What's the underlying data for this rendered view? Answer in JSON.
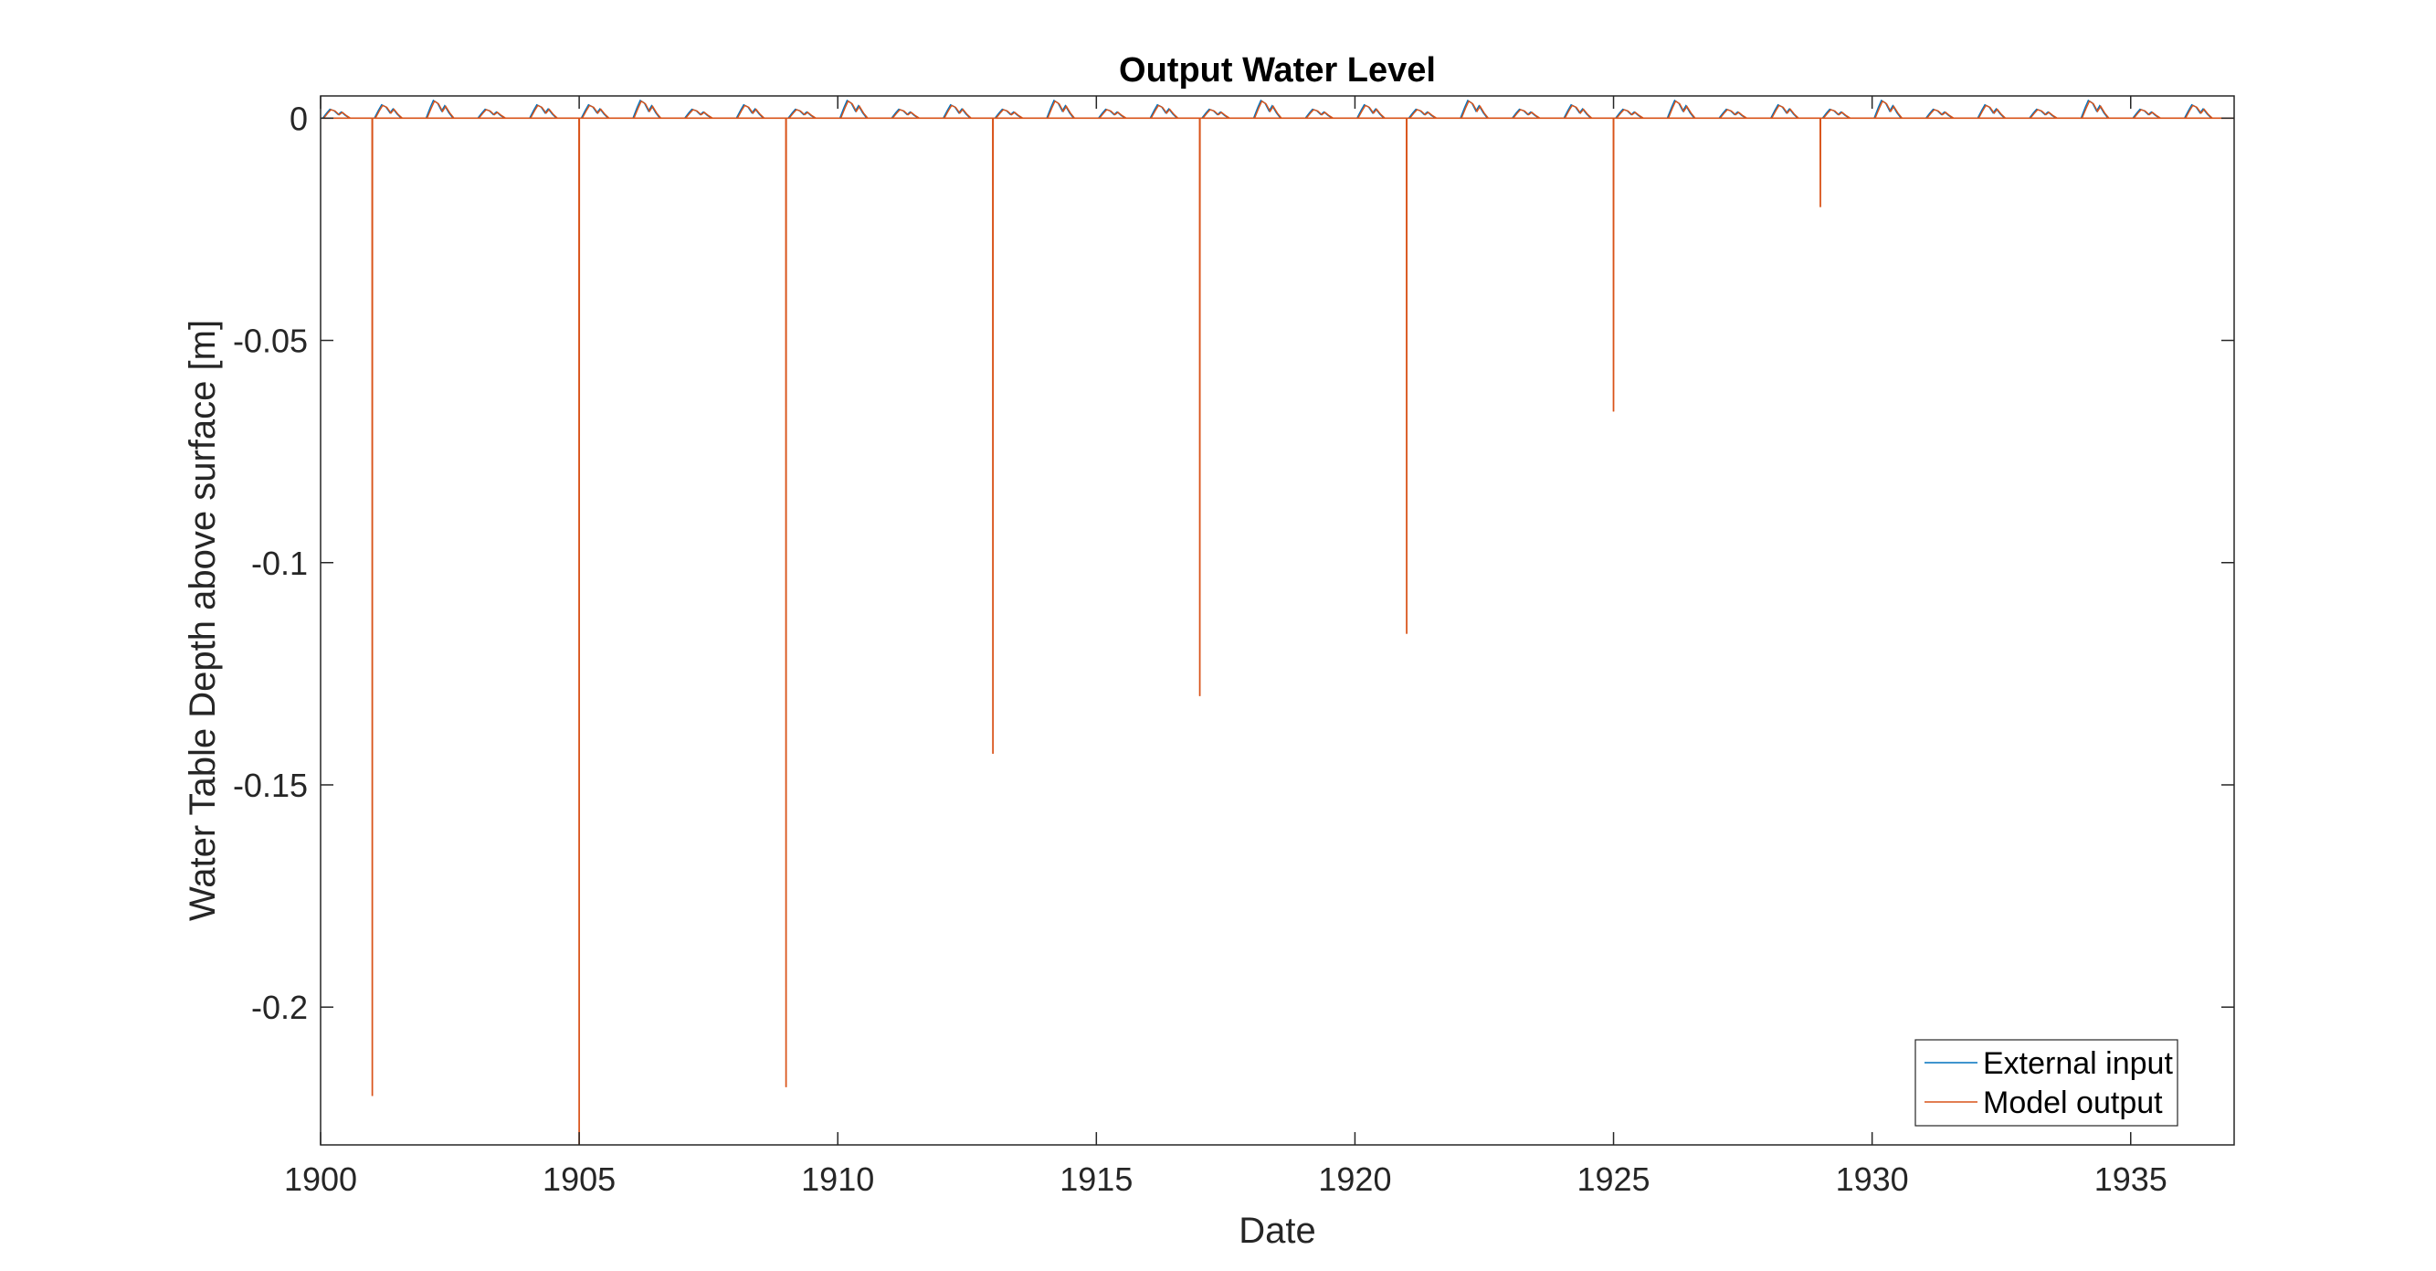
{
  "chart_data": {
    "type": "line",
    "title": "Output Water Level",
    "xlabel": "Date",
    "ylabel": "Water Table Depth above surface [m]",
    "xlim": [
      1900,
      1937
    ],
    "ylim": [
      -0.231,
      0.005
    ],
    "x_ticks": [
      1900,
      1905,
      1910,
      1915,
      1920,
      1925,
      1930,
      1935
    ],
    "x_tick_labels": [
      "1900",
      "1905",
      "1910",
      "1915",
      "1920",
      "1925",
      "1930",
      "1935"
    ],
    "y_ticks": [
      0,
      -0.05,
      -0.1,
      -0.15,
      -0.2
    ],
    "y_tick_labels": [
      "0",
      "-0.05",
      "-0.1",
      "-0.15",
      "-0.2"
    ],
    "grid": false,
    "legend_position": "bottom-right",
    "series": [
      {
        "name": "External input",
        "color": "#0072BD",
        "baseline": 0,
        "seasonal_peaks": [
          {
            "year": 1900,
            "peak": 0.002
          },
          {
            "year": 1901,
            "peak": 0.003
          },
          {
            "year": 1902,
            "peak": 0.004
          },
          {
            "year": 1903,
            "peak": 0.002
          },
          {
            "year": 1904,
            "peak": 0.003
          },
          {
            "year": 1905,
            "peak": 0.003
          },
          {
            "year": 1906,
            "peak": 0.004
          },
          {
            "year": 1907,
            "peak": 0.002
          },
          {
            "year": 1908,
            "peak": 0.003
          },
          {
            "year": 1909,
            "peak": 0.002
          },
          {
            "year": 1910,
            "peak": 0.004
          },
          {
            "year": 1911,
            "peak": 0.002
          },
          {
            "year": 1912,
            "peak": 0.003
          },
          {
            "year": 1913,
            "peak": 0.002
          },
          {
            "year": 1914,
            "peak": 0.004
          },
          {
            "year": 1915,
            "peak": 0.002
          },
          {
            "year": 1916,
            "peak": 0.003
          },
          {
            "year": 1917,
            "peak": 0.002
          },
          {
            "year": 1918,
            "peak": 0.004
          },
          {
            "year": 1919,
            "peak": 0.002
          },
          {
            "year": 1920,
            "peak": 0.003
          },
          {
            "year": 1921,
            "peak": 0.002
          },
          {
            "year": 1922,
            "peak": 0.004
          },
          {
            "year": 1923,
            "peak": 0.002
          },
          {
            "year": 1924,
            "peak": 0.003
          },
          {
            "year": 1925,
            "peak": 0.002
          },
          {
            "year": 1926,
            "peak": 0.004
          },
          {
            "year": 1927,
            "peak": 0.002
          },
          {
            "year": 1928,
            "peak": 0.003
          },
          {
            "year": 1929,
            "peak": 0.002
          },
          {
            "year": 1930,
            "peak": 0.004
          },
          {
            "year": 1931,
            "peak": 0.002
          },
          {
            "year": 1932,
            "peak": 0.003
          },
          {
            "year": 1933,
            "peak": 0.002
          },
          {
            "year": 1934,
            "peak": 0.004
          },
          {
            "year": 1935,
            "peak": 0.002
          },
          {
            "year": 1936,
            "peak": 0.003
          }
        ]
      },
      {
        "name": "Model output",
        "color": "#D95319",
        "baseline": 0,
        "negative_spikes": [
          {
            "x": 1901.0,
            "y": -0.22
          },
          {
            "x": 1905.0,
            "y": -0.231
          },
          {
            "x": 1909.0,
            "y": -0.218
          },
          {
            "x": 1913.0,
            "y": -0.143
          },
          {
            "x": 1917.0,
            "y": -0.13
          },
          {
            "x": 1921.0,
            "y": -0.116
          },
          {
            "x": 1925.0,
            "y": -0.066
          },
          {
            "x": 1929.0,
            "y": -0.02
          }
        ]
      }
    ]
  }
}
